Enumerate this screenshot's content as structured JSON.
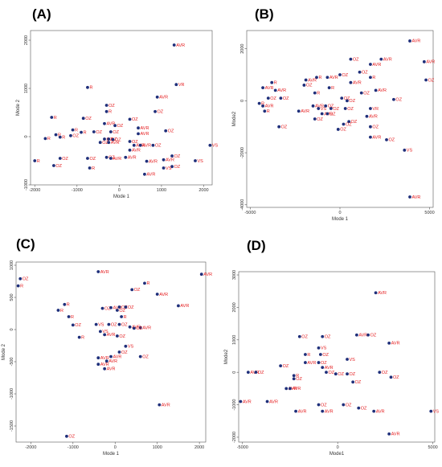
{
  "chart_data": [
    {
      "panel": "(A)",
      "type": "scatter",
      "xlabel": "Mode 1",
      "ylabel": "Mode 2",
      "xlim": [
        -2100,
        2200
      ],
      "ylim": [
        -1000,
        2200
      ],
      "xticks": [
        -2000,
        -1000,
        0,
        1000,
        2000
      ],
      "yticks": [
        -1000,
        0,
        1000,
        2000
      ],
      "grid": false,
      "points": [
        {
          "x": 1300,
          "y": 1900,
          "label": "AVR"
        },
        {
          "x": 1350,
          "y": 1080,
          "label": "VR"
        },
        {
          "x": -750,
          "y": 1020,
          "label": "R"
        },
        {
          "x": 900,
          "y": 820,
          "label": "AVR"
        },
        {
          "x": -300,
          "y": 650,
          "label": "OZ"
        },
        {
          "x": -300,
          "y": 520,
          "label": "R"
        },
        {
          "x": 850,
          "y": 520,
          "label": "OZ"
        },
        {
          "x": -1600,
          "y": 400,
          "label": "R"
        },
        {
          "x": -850,
          "y": 380,
          "label": "OZ"
        },
        {
          "x": 250,
          "y": 360,
          "label": "OZ"
        },
        {
          "x": -350,
          "y": 270,
          "label": "AVR"
        },
        {
          "x": -100,
          "y": 230,
          "label": "OZ"
        },
        {
          "x": 450,
          "y": 180,
          "label": "AVR"
        },
        {
          "x": -1100,
          "y": 140,
          "label": "R"
        },
        {
          "x": -600,
          "y": 100,
          "label": "OZ"
        },
        {
          "x": -900,
          "y": 90,
          "label": "R"
        },
        {
          "x": -200,
          "y": 100,
          "label": "OZ"
        },
        {
          "x": 1100,
          "y": 120,
          "label": "OZ"
        },
        {
          "x": 450,
          "y": 60,
          "label": "AVR"
        },
        {
          "x": -1500,
          "y": 40,
          "label": "R"
        },
        {
          "x": -1150,
          "y": 20,
          "label": "OZ"
        },
        {
          "x": -1400,
          "y": -10,
          "label": "R"
        },
        {
          "x": -1750,
          "y": -40,
          "label": "R"
        },
        {
          "x": -350,
          "y": -50,
          "label": "OZ"
        },
        {
          "x": -250,
          "y": -50,
          "label": "OZ"
        },
        {
          "x": -150,
          "y": -60,
          "label": "OZ"
        },
        {
          "x": 250,
          "y": -100,
          "label": "OZ"
        },
        {
          "x": -450,
          "y": -120,
          "label": "OZ"
        },
        {
          "x": -250,
          "y": -120,
          "label": "AVR"
        },
        {
          "x": 350,
          "y": -180,
          "label": "AVR"
        },
        {
          "x": 500,
          "y": -180,
          "label": "AVR"
        },
        {
          "x": 800,
          "y": -180,
          "label": "OZ"
        },
        {
          "x": 2150,
          "y": -180,
          "label": "VS"
        },
        {
          "x": 250,
          "y": -280,
          "label": "AVR"
        },
        {
          "x": -1400,
          "y": -450,
          "label": "OZ"
        },
        {
          "x": -750,
          "y": -450,
          "label": "OZ"
        },
        {
          "x": -300,
          "y": -430,
          "label": "OZ"
        },
        {
          "x": -200,
          "y": -450,
          "label": "AVR"
        },
        {
          "x": 150,
          "y": -430,
          "label": "AVR"
        },
        {
          "x": 1250,
          "y": -400,
          "label": "OZ"
        },
        {
          "x": 1050,
          "y": -480,
          "label": "AVR"
        },
        {
          "x": 650,
          "y": -510,
          "label": "AVR"
        },
        {
          "x": -2000,
          "y": -500,
          "label": "R"
        },
        {
          "x": 1800,
          "y": -500,
          "label": "VS"
        },
        {
          "x": -1550,
          "y": -600,
          "label": "OZ"
        },
        {
          "x": -700,
          "y": -650,
          "label": "R"
        },
        {
          "x": 1250,
          "y": -620,
          "label": "OZ"
        },
        {
          "x": 1050,
          "y": -650,
          "label": "VS"
        },
        {
          "x": 600,
          "y": -780,
          "label": "AVR"
        }
      ]
    },
    {
      "panel": "(B)",
      "type": "scatter",
      "xlabel": "Mode 1",
      "ylabel": "Mode2",
      "xlim": [
        -5200,
        5200
      ],
      "ylim": [
        -4100,
        2700
      ],
      "xticks": [
        -5000,
        0,
        5000
      ],
      "yticks": [
        -4000,
        -2000,
        0,
        2000
      ],
      "grid": false,
      "points": [
        {
          "x": 3900,
          "y": 2300,
          "label": "AVR"
        },
        {
          "x": 600,
          "y": 1600,
          "label": "OZ"
        },
        {
          "x": 1700,
          "y": 1400,
          "label": "AVR"
        },
        {
          "x": 2300,
          "y": 1600,
          "label": "AVR"
        },
        {
          "x": 4700,
          "y": 1500,
          "label": "AVR"
        },
        {
          "x": 0,
          "y": 1000,
          "label": "OZ"
        },
        {
          "x": 1100,
          "y": 1100,
          "label": "OZ"
        },
        {
          "x": 1700,
          "y": 900,
          "label": "R"
        },
        {
          "x": -1300,
          "y": 900,
          "label": "R"
        },
        {
          "x": -700,
          "y": 900,
          "label": "AVR"
        },
        {
          "x": -1900,
          "y": 800,
          "label": "AVR"
        },
        {
          "x": 4800,
          "y": 800,
          "label": "OZ"
        },
        {
          "x": -3800,
          "y": 700,
          "label": "R"
        },
        {
          "x": -2000,
          "y": 600,
          "label": "OZ"
        },
        {
          "x": 600,
          "y": 700,
          "label": "AVR"
        },
        {
          "x": -4300,
          "y": 500,
          "label": "AVR"
        },
        {
          "x": -600,
          "y": 500,
          "label": "R"
        },
        {
          "x": -3600,
          "y": 400,
          "label": "AVR"
        },
        {
          "x": 2000,
          "y": 400,
          "label": "AVR"
        },
        {
          "x": 1200,
          "y": 300,
          "label": "OZ"
        },
        {
          "x": -1400,
          "y": 300,
          "label": "R"
        },
        {
          "x": -4000,
          "y": 100,
          "label": "OZ"
        },
        {
          "x": -3300,
          "y": 100,
          "label": "OZ"
        },
        {
          "x": 100,
          "y": 100,
          "label": "OZ"
        },
        {
          "x": 400,
          "y": 0,
          "label": "OZ"
        },
        {
          "x": 3000,
          "y": 50,
          "label": "OZ"
        },
        {
          "x": -4300,
          "y": -200,
          "label": "AVR"
        },
        {
          "x": -4500,
          "y": -100,
          "label": "R"
        },
        {
          "x": -4200,
          "y": -400,
          "label": "R"
        },
        {
          "x": -1500,
          "y": -200,
          "label": "AVR"
        },
        {
          "x": -1200,
          "y": -300,
          "label": "VS"
        },
        {
          "x": -800,
          "y": -200,
          "label": "OZ"
        },
        {
          "x": -500,
          "y": -300,
          "label": "OZ"
        },
        {
          "x": 300,
          "y": -300,
          "label": "OZ"
        },
        {
          "x": 1700,
          "y": -300,
          "label": "VR"
        },
        {
          "x": -2300,
          "y": -400,
          "label": "AVR"
        },
        {
          "x": -1000,
          "y": -500,
          "label": "AVR"
        },
        {
          "x": -700,
          "y": -500,
          "label": "OZ"
        },
        {
          "x": 1500,
          "y": -600,
          "label": "AVR"
        },
        {
          "x": -1400,
          "y": -700,
          "label": "OZ"
        },
        {
          "x": 500,
          "y": -800,
          "label": "OZ"
        },
        {
          "x": 200,
          "y": -900,
          "label": "OZ"
        },
        {
          "x": -3400,
          "y": -1000,
          "label": "OZ"
        },
        {
          "x": 1700,
          "y": -1000,
          "label": "OZ"
        },
        {
          "x": -100,
          "y": -1100,
          "label": "OZ"
        },
        {
          "x": 1700,
          "y": -1400,
          "label": "AVR"
        },
        {
          "x": 2600,
          "y": -1500,
          "label": "OZ"
        },
        {
          "x": 3600,
          "y": -1900,
          "label": "VS"
        },
        {
          "x": 3900,
          "y": -3700,
          "label": "AVR"
        }
      ]
    },
    {
      "panel": "(C)",
      "type": "scatter",
      "xlabel": "Mode 1",
      "ylabel": "Mode 2",
      "xlim": [
        -2350,
        2150
      ],
      "ylim": [
        -1750,
        1050
      ],
      "xticks": [
        -2000,
        -1000,
        0,
        1000,
        2000
      ],
      "yticks": [
        -1500,
        -1000,
        -500,
        0,
        500,
        1000
      ],
      "grid": false,
      "points": [
        {
          "x": 2050,
          "y": 860,
          "label": "AVR"
        },
        {
          "x": -400,
          "y": 900,
          "label": "AVR"
        },
        {
          "x": -2250,
          "y": 790,
          "label": "OZ"
        },
        {
          "x": -2300,
          "y": 680,
          "label": "R"
        },
        {
          "x": 700,
          "y": 720,
          "label": "R"
        },
        {
          "x": 400,
          "y": 620,
          "label": "OZ"
        },
        {
          "x": 1000,
          "y": 550,
          "label": "AVR"
        },
        {
          "x": -1200,
          "y": 390,
          "label": "R"
        },
        {
          "x": 1500,
          "y": 370,
          "label": "AVR"
        },
        {
          "x": -1350,
          "y": 300,
          "label": "R"
        },
        {
          "x": -300,
          "y": 330,
          "label": "OZ"
        },
        {
          "x": -100,
          "y": 340,
          "label": "AVR"
        },
        {
          "x": 100,
          "y": 350,
          "label": "OZ"
        },
        {
          "x": 250,
          "y": 350,
          "label": "OZ"
        },
        {
          "x": 50,
          "y": 300,
          "label": "OZ"
        },
        {
          "x": -1100,
          "y": 200,
          "label": "R"
        },
        {
          "x": 150,
          "y": 200,
          "label": "R"
        },
        {
          "x": -1000,
          "y": 70,
          "label": "OZ"
        },
        {
          "x": -450,
          "y": 80,
          "label": "VS"
        },
        {
          "x": -150,
          "y": 80,
          "label": "OZ"
        },
        {
          "x": 100,
          "y": 80,
          "label": "OZ"
        },
        {
          "x": 350,
          "y": 40,
          "label": "AVR"
        },
        {
          "x": 600,
          "y": 30,
          "label": "AVR"
        },
        {
          "x": 450,
          "y": 20,
          "label": "OZ"
        },
        {
          "x": -350,
          "y": -30,
          "label": "VS"
        },
        {
          "x": -250,
          "y": -80,
          "label": "AVR"
        },
        {
          "x": 50,
          "y": -100,
          "label": "OZ"
        },
        {
          "x": -850,
          "y": -120,
          "label": "R"
        },
        {
          "x": 250,
          "y": -260,
          "label": "VS"
        },
        {
          "x": 100,
          "y": -350,
          "label": "OZ"
        },
        {
          "x": -100,
          "y": -420,
          "label": "AVR"
        },
        {
          "x": -400,
          "y": -440,
          "label": "AVR"
        },
        {
          "x": 600,
          "y": -420,
          "label": "OZ"
        },
        {
          "x": -200,
          "y": -490,
          "label": "AVR"
        },
        {
          "x": -400,
          "y": -540,
          "label": "AVR"
        },
        {
          "x": -250,
          "y": -610,
          "label": "AVR"
        },
        {
          "x": 1050,
          "y": -1170,
          "label": "AVR"
        },
        {
          "x": -1150,
          "y": -1660,
          "label": "OZ"
        }
      ]
    },
    {
      "panel": "(D)",
      "type": "scatter",
      "xlabel": "Mode1",
      "ylabel": "Mode2",
      "xlim": [
        -5200,
        5100
      ],
      "ylim": [
        -2150,
        3100
      ],
      "xticks": [
        -5000,
        0,
        5000
      ],
      "yticks": [
        -2000,
        -1000,
        0,
        1000,
        2000,
        3000
      ],
      "grid": false,
      "points": [
        {
          "x": 2000,
          "y": 2450,
          "label": "AVR"
        },
        {
          "x": 1000,
          "y": 1150,
          "label": "AVR"
        },
        {
          "x": 1600,
          "y": 1150,
          "label": "OZ"
        },
        {
          "x": -2000,
          "y": 1100,
          "label": "OZ"
        },
        {
          "x": -800,
          "y": 1100,
          "label": "OZ"
        },
        {
          "x": 2700,
          "y": 900,
          "label": "AVR"
        },
        {
          "x": -1000,
          "y": 750,
          "label": "VS"
        },
        {
          "x": -1700,
          "y": 550,
          "label": "R"
        },
        {
          "x": -900,
          "y": 550,
          "label": "OZ"
        },
        {
          "x": 500,
          "y": 400,
          "label": "VS"
        },
        {
          "x": -1700,
          "y": 300,
          "label": "AVR"
        },
        {
          "x": -1000,
          "y": 300,
          "label": "OZ"
        },
        {
          "x": -3000,
          "y": 200,
          "label": "OZ"
        },
        {
          "x": -800,
          "y": 150,
          "label": "AVR"
        },
        {
          "x": -4700,
          "y": 0,
          "label": "AVR"
        },
        {
          "x": -4300,
          "y": 0,
          "label": "OZ"
        },
        {
          "x": -600,
          "y": 0,
          "label": "OZ"
        },
        {
          "x": -100,
          "y": -50,
          "label": "OZ"
        },
        {
          "x": 500,
          "y": -50,
          "label": "OZ"
        },
        {
          "x": -2300,
          "y": -100,
          "label": "R"
        },
        {
          "x": -2300,
          "y": -200,
          "label": "OZ"
        },
        {
          "x": 2200,
          "y": 0,
          "label": "OZ"
        },
        {
          "x": 2800,
          "y": -150,
          "label": "OZ"
        },
        {
          "x": 800,
          "y": -300,
          "label": "OZ"
        },
        {
          "x": -2700,
          "y": -500,
          "label": "AVR"
        },
        {
          "x": -2500,
          "y": -500,
          "label": "AVR"
        },
        {
          "x": -5100,
          "y": -900,
          "label": "AVR"
        },
        {
          "x": -3700,
          "y": -900,
          "label": "AVR"
        },
        {
          "x": -1000,
          "y": -1000,
          "label": "OZ"
        },
        {
          "x": 300,
          "y": -1000,
          "label": "OZ"
        },
        {
          "x": 1100,
          "y": -1100,
          "label": "OZ"
        },
        {
          "x": -2200,
          "y": -1200,
          "label": "AVR"
        },
        {
          "x": -800,
          "y": -1200,
          "label": "AVR"
        },
        {
          "x": 1900,
          "y": -1200,
          "label": "AVR"
        },
        {
          "x": 4900,
          "y": -1200,
          "label": "VS"
        },
        {
          "x": 2700,
          "y": -1900,
          "label": "AVR"
        }
      ]
    }
  ],
  "colors": {
    "marker": "#1f2f7a",
    "label": "#e41a1c",
    "axis": "#555555"
  }
}
